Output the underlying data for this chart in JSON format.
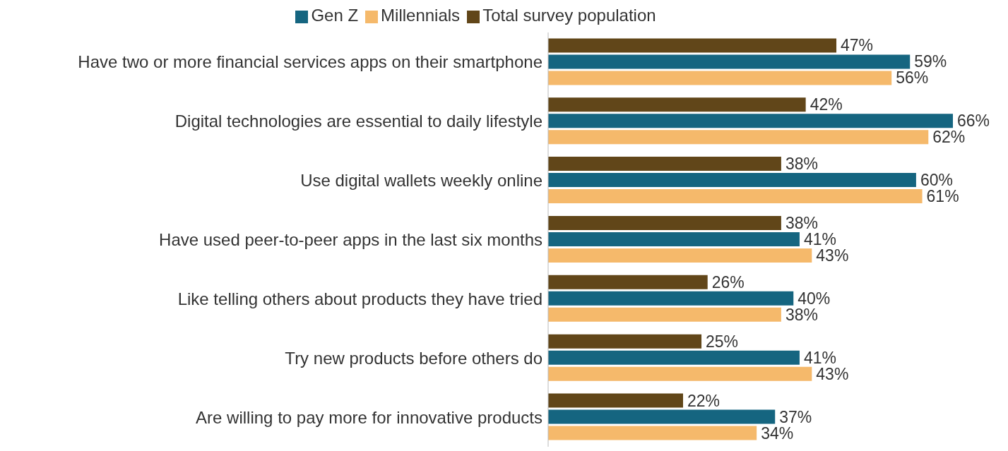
{
  "chart_data": {
    "type": "bar",
    "orientation": "horizontal",
    "legend": "top",
    "categories": [
      "Have two or more financial services apps on their smartphone",
      "Digital technologies are essential to daily lifestyle",
      "Use digital wallets weekly online",
      "Have used peer-to-peer apps in the last six months",
      "Like telling others about products they have tried",
      "Try new products before others do",
      "Are willing to pay more for innovative products"
    ],
    "series": [
      {
        "name": "Total survey population",
        "color": "#614619",
        "values": [
          47,
          42,
          38,
          38,
          26,
          25,
          22
        ],
        "value_labels": [
          "47%",
          "42%",
          "38%",
          "38%",
          "26%",
          "25%",
          "22%"
        ]
      },
      {
        "name": "Gen Z",
        "color": "#156580",
        "values": [
          59,
          66,
          60,
          41,
          40,
          41,
          37
        ],
        "value_labels": [
          "59%",
          "66%",
          "60%",
          "41%",
          "40%",
          "41%",
          "37%"
        ]
      },
      {
        "name": "Millennials",
        "color": "#f5b96b",
        "values": [
          56,
          62,
          61,
          43,
          38,
          43,
          34
        ],
        "value_labels": [
          "56%",
          "62%",
          "61%",
          "43%",
          "38%",
          "43%",
          "34%"
        ]
      }
    ]
  }
}
